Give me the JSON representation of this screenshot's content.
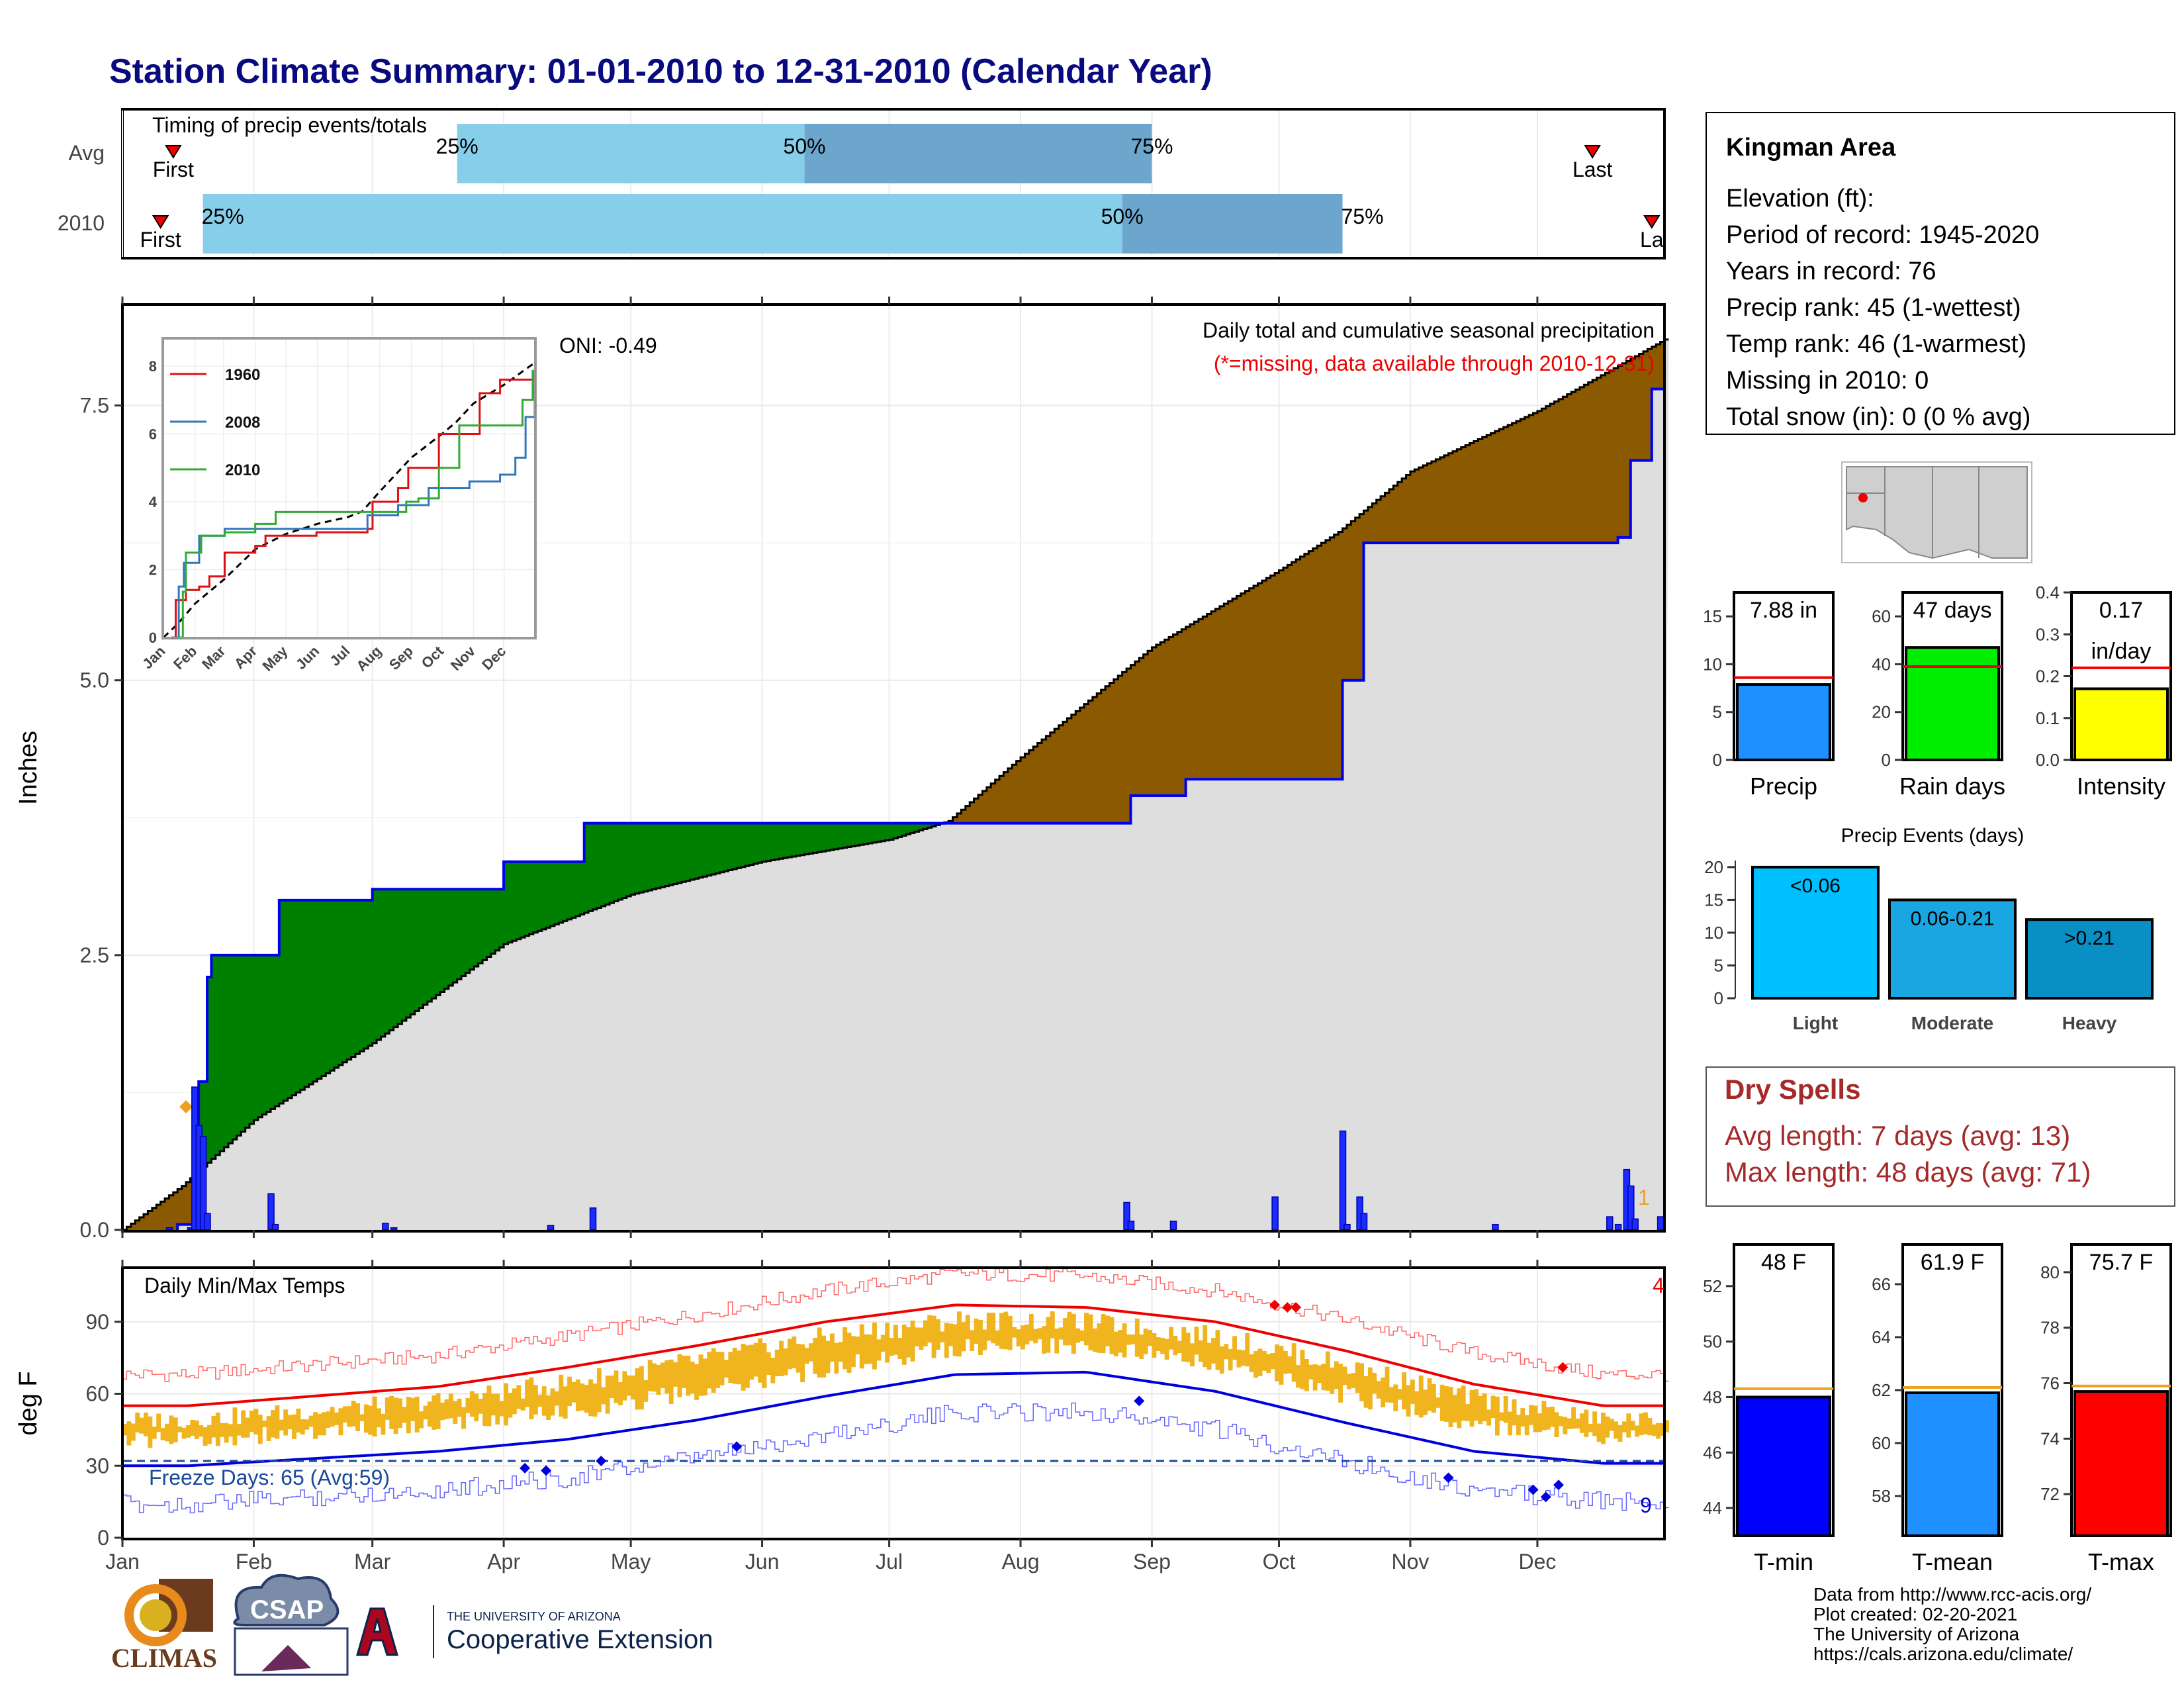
{
  "title": "Station Climate Summary: 01-01-2010 to 12-31-2010 (Calendar Year)",
  "timing": {
    "label": "Timing of precip events/totals",
    "rows": [
      {
        "name": "Avg",
        "first_label": "First",
        "last_label": "Last",
        "first_day": 12,
        "last_day": 347,
        "p25_day": 79,
        "p50_day": 161,
        "p75_day": 243,
        "p25_label": "25%",
        "p50_label": "50%",
        "p75_label": "75%"
      },
      {
        "name": "2010",
        "first_label": "First",
        "last_label": "La",
        "first_day": 9,
        "last_day": 361,
        "p25_day": 19,
        "p50_day": 236,
        "p75_day": 288,
        "p25_label": "25%",
        "p50_label": "50%",
        "p75_label": "75%"
      }
    ]
  },
  "precip": {
    "ylabel": "Inches",
    "header": "Daily total and cumulative seasonal precipitation",
    "missing_note": "(*=missing, data available through 2010-12-31)",
    "oni": "ONI: -0.49",
    "count_label": "1",
    "yticks": [
      "0.0",
      "2.5",
      "5.0",
      "7.5"
    ]
  },
  "inset": {
    "series": [
      {
        "name": "1960",
        "color": "#dd1111"
      },
      {
        "name": "2008",
        "color": "#3377bb"
      },
      {
        "name": "2010",
        "color": "#33aa33"
      }
    ],
    "yticks": [
      "0",
      "2",
      "4",
      "6",
      "8"
    ],
    "months": [
      "Jan",
      "Feb",
      "Mar",
      "Apr",
      "May",
      "Jun",
      "Jul",
      "Aug",
      "Sep",
      "Oct",
      "Nov",
      "Dec"
    ]
  },
  "temps": {
    "ylabel": "deg F",
    "label": "Daily Min/Max Temps",
    "freeze": "Freeze Days: 65 (Avg:59)",
    "count_hi": "4",
    "count_lo": "9",
    "yticks": [
      "0",
      "30",
      "60",
      "90"
    ]
  },
  "months": [
    "Jan",
    "Feb",
    "Mar",
    "Apr",
    "May",
    "Jun",
    "Jul",
    "Aug",
    "Sep",
    "Oct",
    "Nov",
    "Dec"
  ],
  "station": {
    "name": "Kingman Area",
    "elevation": "Elevation (ft):",
    "period": "Period of record: 1945-2020",
    "years": "Years in record: 76",
    "precip_rank": "Precip rank: 45 (1-wettest)",
    "temp_rank": "Temp rank: 46 (1-warmest)",
    "missing": "Missing in 2010: 0",
    "snow": "Total snow (in): 0 (0 % avg)"
  },
  "stats": {
    "precip": {
      "label": "Precip",
      "value_label": "7.88 in",
      "value": 7.88,
      "avg": 8.6,
      "ymax": 17.5,
      "yticks": [
        "0",
        "5",
        "10",
        "15"
      ],
      "color": "#1e90ff"
    },
    "raindays": {
      "label": "Rain days",
      "value_label": "47 days",
      "value": 47,
      "avg": 39,
      "ymax": 70,
      "yticks": [
        "0",
        "20",
        "40",
        "60"
      ],
      "color": "#00ee00"
    },
    "intensity": {
      "label": "Intensity",
      "value_label": "0.17",
      "value_label2": "in/day",
      "value": 0.17,
      "avg": 0.22,
      "ymax": 0.4,
      "yticks": [
        "0.0",
        "0.1",
        "0.2",
        "0.3",
        "0.4"
      ],
      "color": "#ffff00"
    }
  },
  "events": {
    "title": "Precip Events (days)",
    "yticks": [
      "0",
      "5",
      "10",
      "15",
      "20"
    ],
    "bars": [
      {
        "category": "Light",
        "bar_label": "<0.06",
        "value": 20,
        "color": "#00bfff"
      },
      {
        "category": "Moderate",
        "bar_label": "0.06-0.21",
        "value": 15,
        "color": "#1aa6e0"
      },
      {
        "category": "Heavy",
        "bar_label": ">0.21",
        "value": 12,
        "color": "#0a8fc4"
      }
    ]
  },
  "dry": {
    "title": "Dry Spells",
    "avg": "Avg length: 7 days (avg: 13)",
    "max": "Max length: 48 days (avg: 71)"
  },
  "temp_stats": {
    "tmin": {
      "label": "T-min",
      "value_label": "48 F",
      "value": 48,
      "avg": 48.3,
      "ymin": 43,
      "ymax": 53.5,
      "yticks": [
        "44",
        "46",
        "48",
        "50",
        "52"
      ],
      "color": "#0000ff"
    },
    "tmean": {
      "label": "T-mean",
      "value_label": "61.9 F",
      "value": 61.9,
      "avg": 62.1,
      "ymin": 56.5,
      "ymax": 67.5,
      "yticks": [
        "58",
        "60",
        "62",
        "64",
        "66"
      ],
      "color": "#1e90ff"
    },
    "tmax": {
      "label": "T-max",
      "value_label": "75.7 F",
      "value": 75.7,
      "avg": 75.9,
      "ymin": 70.5,
      "ymax": 81,
      "yticks": [
        "72",
        "74",
        "76",
        "78",
        "80"
      ],
      "color": "#ff0000"
    }
  },
  "footer": {
    "line1": "Data from http://www.rcc-acis.org/",
    "line2": "Plot created: 02-20-2021",
    "line3": "The University of Arizona",
    "line4": "https://cals.arizona.edu/climate/"
  },
  "logos": {
    "climas": "CLIMAS",
    "csap": "CSAP",
    "ua_small": "THE UNIVERSITY OF ARIZONA",
    "ua_big": "Cooperative Extension"
  },
  "chart_data": {
    "type": "area",
    "title": "Station Climate Summary: 01-01-2010 to 12-31-2010 (Calendar Year)",
    "ylabel": "Inches",
    "ylim": [
      0,
      8.2
    ],
    "xlim": [
      "2010-01-01",
      "2010-12-31"
    ],
    "series": [
      {
        "name": "avg cumulative",
        "x": [
          "2010-01-01",
          "2010-01-15",
          "2010-02-01",
          "2010-03-01",
          "2010-04-01",
          "2010-05-01",
          "2010-06-01",
          "2010-07-01",
          "2010-07-15",
          "2010-08-01",
          "2010-09-01",
          "2010-10-01",
          "2010-10-15",
          "2010-11-01",
          "2010-12-01",
          "2010-12-31"
        ],
        "y": [
          0,
          0.4,
          1.0,
          1.7,
          2.6,
          3.05,
          3.35,
          3.55,
          3.72,
          4.3,
          5.3,
          6.0,
          6.35,
          6.9,
          7.45,
          8.1
        ]
      },
      {
        "name": "2010 cumulative",
        "x": [
          "2010-01-14",
          "2010-01-18",
          "2010-01-19",
          "2010-01-21",
          "2010-01-22",
          "2010-02-07",
          "2010-03-01",
          "2010-04-01",
          "2010-04-20",
          "2010-05-01",
          "2010-06-01",
          "2010-07-01",
          "2010-08-01",
          "2010-08-26",
          "2010-08-27",
          "2010-09-09",
          "2010-09-30",
          "2010-10-16",
          "2010-10-20",
          "2010-10-21",
          "2010-11-01",
          "2010-12-01",
          "2010-12-20",
          "2010-12-23",
          "2010-12-28",
          "2010-12-31"
        ],
        "y": [
          0.05,
          0.05,
          1.35,
          2.3,
          2.5,
          3.0,
          3.1,
          3.35,
          3.7,
          3.7,
          3.7,
          3.7,
          3.7,
          3.7,
          3.95,
          4.1,
          4.1,
          5.0,
          5.0,
          6.25,
          6.25,
          6.25,
          6.3,
          7.0,
          7.65,
          7.88
        ]
      }
    ],
    "daily_bars": {
      "dates": [
        "2010-01-12",
        "2010-01-17",
        "2010-01-18",
        "2010-01-19",
        "2010-01-20",
        "2010-01-21",
        "2010-02-05",
        "2010-02-06",
        "2010-03-04",
        "2010-03-06",
        "2010-04-12",
        "2010-04-22",
        "2010-08-26",
        "2010-08-27",
        "2010-09-06",
        "2010-09-30",
        "2010-10-16",
        "2010-10-17",
        "2010-10-20",
        "2010-10-21",
        "2010-11-21",
        "2010-12-18",
        "2010-12-20",
        "2010-12-22",
        "2010-12-23",
        "2010-12-24",
        "2010-12-30"
      ],
      "values": [
        0.02,
        0.02,
        1.3,
        0.95,
        0.85,
        0.15,
        0.33,
        0.05,
        0.06,
        0.02,
        0.04,
        0.2,
        0.25,
        0.08,
        0.08,
        0.3,
        0.9,
        0.05,
        0.3,
        0.15,
        0.05,
        0.12,
        0.05,
        0.55,
        0.4,
        0.1,
        0.12
      ]
    },
    "temps": {
      "ylabel": "deg F",
      "ylim": [
        0,
        112
      ],
      "freeze_line": 32,
      "avg_max": {
        "months": [
          "Jan",
          "Feb",
          "Mar",
          "Apr",
          "May",
          "Jun",
          "Jul",
          "Aug",
          "Sep",
          "Oct",
          "Nov",
          "Dec"
        ],
        "values": [
          55,
          59,
          63,
          71,
          80,
          90,
          97,
          96,
          90,
          78,
          64,
          55
        ]
      },
      "avg_min": {
        "months": [
          "Jan",
          "Feb",
          "Mar",
          "Apr",
          "May",
          "Jun",
          "Jul",
          "Aug",
          "Sep",
          "Oct",
          "Nov",
          "Dec"
        ],
        "values": [
          30,
          33,
          36,
          41,
          49,
          59,
          68,
          69,
          61,
          48,
          36,
          31
        ]
      }
    },
    "grid": true
  }
}
